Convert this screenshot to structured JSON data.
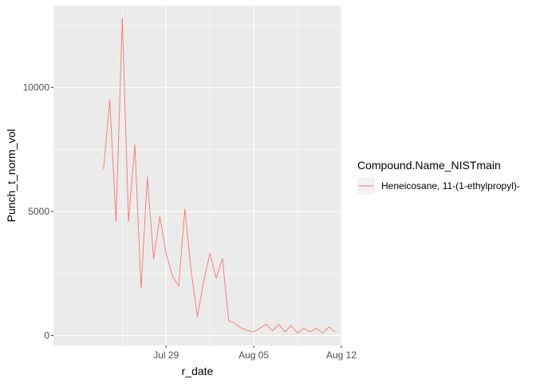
{
  "chart_data": {
    "type": "line",
    "title": "",
    "xlabel": "r_date",
    "ylabel": "Punch_t_norm_vol",
    "x_axis": {
      "kind": "date",
      "range": [
        "2025-07-20",
        "2025-08-12"
      ],
      "ticks": [
        {
          "date": "2025-07-29",
          "label": "Jul 29"
        },
        {
          "date": "2025-08-05",
          "label": "Aug 05"
        },
        {
          "date": "2025-08-12",
          "label": "Aug 12"
        }
      ]
    },
    "y_axis": {
      "range": [
        -400,
        13300
      ],
      "ticks": [
        {
          "value": 0,
          "label": "0"
        },
        {
          "value": 5000,
          "label": "5000"
        },
        {
          "value": 10000,
          "label": "10000"
        }
      ]
    },
    "grid": true,
    "panel_background": "#ebebeb",
    "legend": {
      "title": "Compound.Name_NISTmain",
      "placement": "right"
    },
    "series": [
      {
        "name": "Heneicosane, 11-(1-ethylpropyl)-",
        "color": "#f8766d",
        "x": [
          "2025-07-24",
          "2025-07-24T12:00",
          "2025-07-25",
          "2025-07-25T12:00",
          "2025-07-26",
          "2025-07-26T12:00",
          "2025-07-27",
          "2025-07-27T12:00",
          "2025-07-28",
          "2025-07-28T12:00",
          "2025-07-29",
          "2025-07-29T12:00",
          "2025-07-30",
          "2025-07-30T12:00",
          "2025-07-31",
          "2025-07-31T12:00",
          "2025-08-01",
          "2025-08-01T12:00",
          "2025-08-02",
          "2025-08-02T12:00",
          "2025-08-03",
          "2025-08-03T12:00",
          "2025-08-04",
          "2025-08-04T12:00",
          "2025-08-05",
          "2025-08-05T12:00",
          "2025-08-06",
          "2025-08-06T12:00",
          "2025-08-07",
          "2025-08-07T12:00",
          "2025-08-08",
          "2025-08-08T12:00",
          "2025-08-09",
          "2025-08-09T12:00",
          "2025-08-10",
          "2025-08-10T12:00",
          "2025-08-11",
          "2025-08-11T12:00"
        ],
        "y": [
          6700,
          9500,
          4600,
          12800,
          4600,
          7700,
          1900,
          6400,
          3100,
          4800,
          3300,
          2400,
          2000,
          5100,
          2600,
          750,
          2200,
          3300,
          2300,
          3100,
          600,
          500,
          300,
          200,
          150,
          300,
          450,
          200,
          450,
          150,
          400,
          100,
          300,
          150,
          300,
          100,
          350,
          150
        ]
      }
    ]
  }
}
